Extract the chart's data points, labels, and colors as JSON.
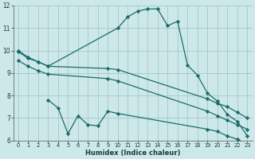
{
  "xlabel": "Humidex (Indice chaleur)",
  "bg_color": "#cde8e8",
  "grid_color": "#aacccc",
  "line_color": "#1a6b6b",
  "xlim": [
    -0.5,
    23.5
  ],
  "ylim": [
    6,
    12
  ],
  "xticks": [
    0,
    1,
    2,
    3,
    4,
    5,
    6,
    7,
    8,
    9,
    10,
    11,
    12,
    13,
    14,
    15,
    16,
    17,
    18,
    19,
    20,
    21,
    22,
    23
  ],
  "yticks": [
    6,
    7,
    8,
    9,
    10,
    11,
    12
  ],
  "line1_x": [
    0,
    1,
    2,
    3,
    10,
    11,
    12,
    13,
    14,
    15,
    16,
    17,
    18,
    19,
    20,
    21,
    22,
    23
  ],
  "line1_y": [
    10.0,
    9.7,
    9.5,
    9.3,
    11.0,
    11.5,
    11.75,
    11.85,
    11.85,
    11.1,
    11.3,
    9.35,
    8.9,
    8.1,
    7.75,
    7.15,
    6.85,
    6.2
  ],
  "line2_x": [
    0,
    1,
    2,
    3,
    9,
    10,
    19,
    20,
    21,
    22,
    23
  ],
  "line2_y": [
    9.95,
    9.65,
    9.5,
    9.3,
    9.2,
    9.15,
    7.85,
    7.65,
    7.5,
    7.25,
    7.0
  ],
  "line3_x": [
    0,
    1,
    2,
    3,
    9,
    10,
    19,
    20,
    21,
    22,
    23
  ],
  "line3_y": [
    9.55,
    9.3,
    9.1,
    8.95,
    8.75,
    8.65,
    7.3,
    7.1,
    6.9,
    6.7,
    6.5
  ],
  "line4_x": [
    3,
    4,
    5,
    6,
    7,
    8,
    9,
    10,
    19,
    20,
    21,
    22,
    23
  ],
  "line4_y": [
    7.8,
    7.45,
    6.3,
    7.1,
    6.7,
    6.65,
    7.3,
    7.2,
    6.5,
    6.4,
    6.2,
    6.05,
    5.85
  ]
}
